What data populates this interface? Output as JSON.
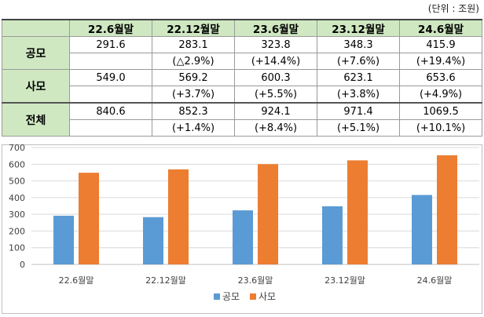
{
  "unit_label": "(단위 : 조원)",
  "table": {
    "columns": [
      "22.6월말",
      "22.12월말",
      "23.6월말",
      "23.12월말",
      "24.6월말"
    ],
    "rows": [
      {
        "label": "공모",
        "values": [
          "291.6",
          "283.1",
          "323.8",
          "348.3",
          "415.9"
        ],
        "changes": [
          "",
          "(△2.9%)",
          "(+14.4%)",
          "(+7.6%)",
          "(+19.4%)"
        ]
      },
      {
        "label": "사모",
        "values": [
          "549.0",
          "569.2",
          "600.3",
          "623.1",
          "653.6"
        ],
        "changes": [
          "",
          "(+3.7%)",
          "(+5.5%)",
          "(+3.8%)",
          "(+4.9%)"
        ]
      },
      {
        "label": "전체",
        "values": [
          "840.6",
          "852.3",
          "924.1",
          "971.4",
          "1069.5"
        ],
        "changes": [
          "",
          "(+1.4%)",
          "(+8.4%)",
          "(+5.1%)",
          "(+10.1%)"
        ]
      }
    ]
  },
  "chart_data": {
    "type": "bar",
    "categories": [
      "22.6월말",
      "22.12월말",
      "23.6월말",
      "23.12월말",
      "24.6월말"
    ],
    "series": [
      {
        "name": "공모",
        "values": [
          291.6,
          283.1,
          323.8,
          348.3,
          415.9
        ],
        "color": "#5b9bd5"
      },
      {
        "name": "사모",
        "values": [
          549.0,
          569.2,
          600.3,
          623.1,
          653.6
        ],
        "color": "#ed7d31"
      }
    ],
    "ylim": [
      0,
      700
    ],
    "yticks": [
      0,
      100,
      200,
      300,
      400,
      500,
      600,
      700
    ],
    "grid": true,
    "legend": "bottom-center"
  }
}
